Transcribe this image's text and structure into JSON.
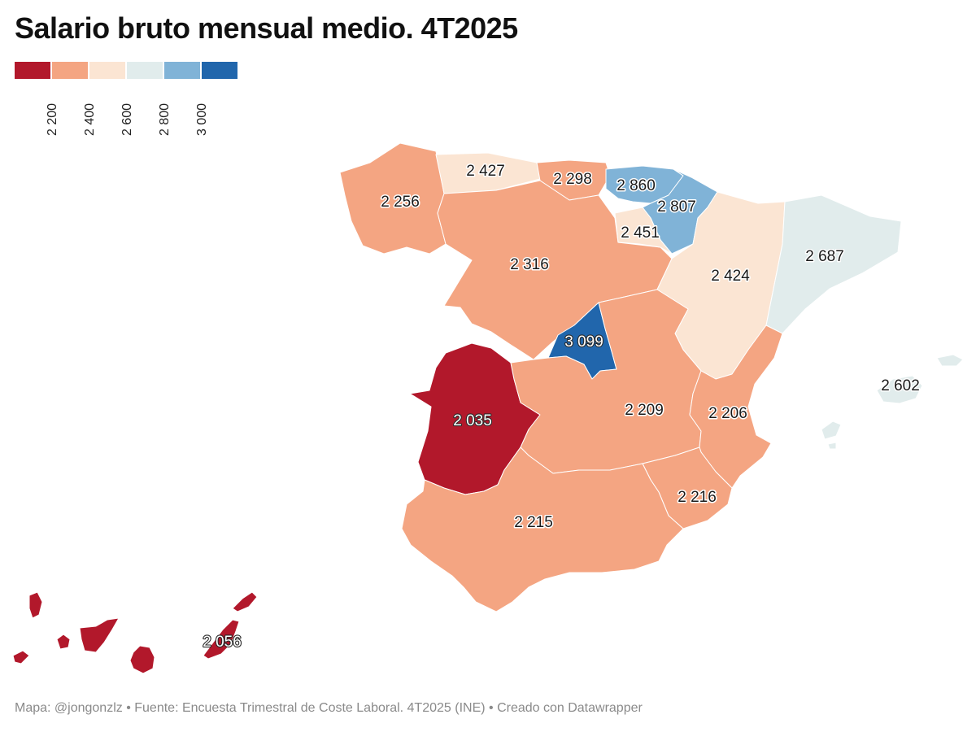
{
  "title": "Salario bruto mensual medio. 4T2025",
  "legend": {
    "colors": [
      "#b2182b",
      "#f4a582",
      "#fbe5d3",
      "#e1ecec",
      "#80b3d7",
      "#2166ac"
    ],
    "ticks": [
      "2 200",
      "2 400",
      "2 600",
      "2 800",
      "3 000"
    ]
  },
  "regions": {
    "galicia": {
      "name": "Galicia",
      "value": "2 256",
      "color": "#f4a582"
    },
    "asturias": {
      "name": "Asturias",
      "value": "2 427",
      "color": "#fbe5d3"
    },
    "cantabria": {
      "name": "Cantabria",
      "value": "2 298",
      "color": "#f4a582"
    },
    "pais_vasco": {
      "name": "País Vasco",
      "value": "2 860",
      "color": "#80b3d7"
    },
    "navarra": {
      "name": "Navarra",
      "value": "2 807",
      "color": "#80b3d7"
    },
    "la_rioja": {
      "name": "La Rioja",
      "value": "2 451",
      "color": "#fbe5d3"
    },
    "aragon": {
      "name": "Aragón",
      "value": "2 424",
      "color": "#fbe5d3"
    },
    "cataluna": {
      "name": "Cataluña",
      "value": "2 687",
      "color": "#e1ecec"
    },
    "castilla_leon": {
      "name": "Castilla y León",
      "value": "2 316",
      "color": "#f4a582"
    },
    "madrid": {
      "name": "Madrid",
      "value": "3 099",
      "color": "#2166ac"
    },
    "extremadura": {
      "name": "Extremadura",
      "value": "2 035",
      "color": "#b2182b"
    },
    "castilla_la_mancha": {
      "name": "Castilla-La Mancha",
      "value": "2 209",
      "color": "#f4a582"
    },
    "valencia": {
      "name": "Comunitat Valenciana",
      "value": "2 206",
      "color": "#f4a582"
    },
    "murcia": {
      "name": "Murcia",
      "value": "2 216",
      "color": "#f4a582"
    },
    "andalucia": {
      "name": "Andalucía",
      "value": "2 215",
      "color": "#f4a582"
    },
    "baleares": {
      "name": "Illes Balears",
      "value": "2 602",
      "color": "#e1ecec"
    },
    "canarias": {
      "name": "Canarias",
      "value": "2 056",
      "color": "#b2182b"
    }
  },
  "footer": "Mapa: @jongonzlz • Fuente: Encuesta Trimestral de Coste Laboral. 4T2025 (INE) • Creado con Datawrapper"
}
